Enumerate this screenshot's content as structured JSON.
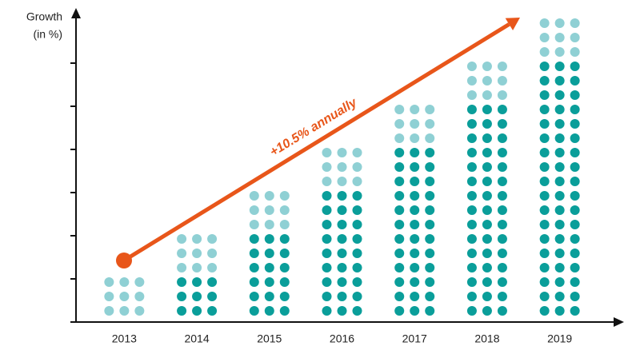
{
  "chart_data": {
    "type": "dot-stack",
    "y_label": [
      "Growth",
      "(in %)"
    ],
    "annotation": "+10.5% annually",
    "categories": [
      "2013",
      "2014",
      "2015",
      "2016",
      "2017",
      "2018",
      "2019"
    ],
    "series": [
      {
        "color": "#0a9e9a",
        "values": [
          0,
          3,
          6,
          9,
          12,
          15,
          18
        ]
      },
      {
        "color": "#8fd0d4",
        "values": [
          3,
          3,
          3,
          3,
          3,
          3,
          3
        ]
      }
    ],
    "dots_per_row": 3,
    "ylim": [
      0,
      21.5
    ],
    "yticks": [
      3,
      6,
      9,
      12,
      15,
      18
    ],
    "arrow_color": "#e8561a"
  }
}
